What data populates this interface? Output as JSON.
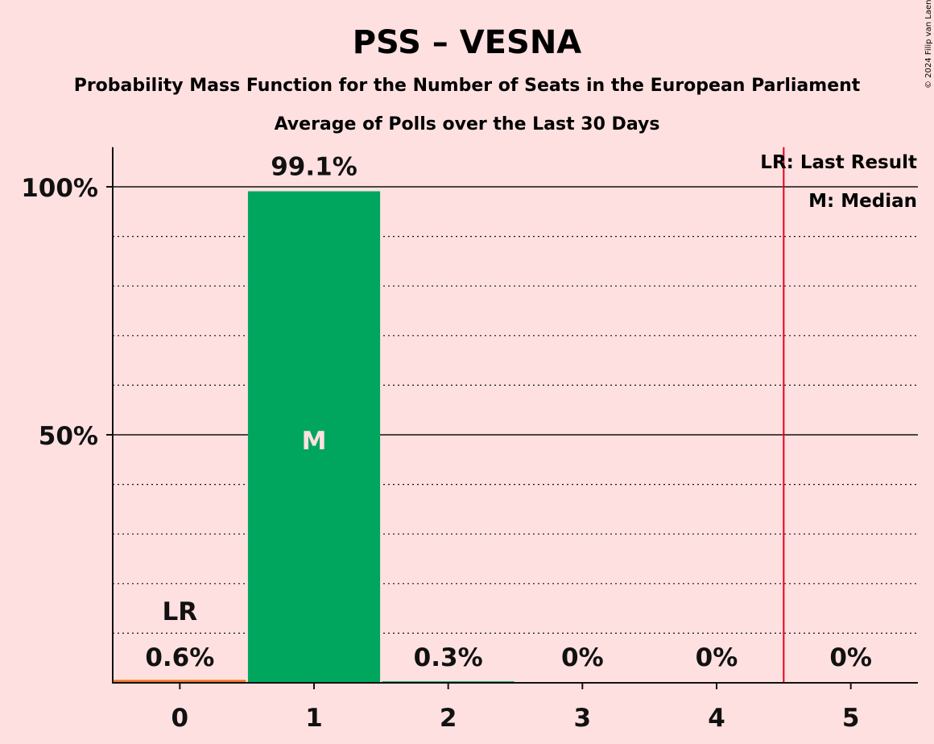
{
  "colors": {
    "background": "#ffe0e0",
    "bar": "#00a65e",
    "last_result_bar": "#f07a2a",
    "last_result_line": "#e8001c",
    "median_text": "#ffe0e0",
    "text": "#111111"
  },
  "copyright": "© 2024 Filip van Laenen",
  "chart_data": {
    "type": "bar",
    "title": "PSS – VESNA",
    "subtitle": "Probability Mass Function for the Number of Seats in the European Parliament",
    "subtitle2": "Average of Polls over the Last 30 Days",
    "categories": [
      "0",
      "1",
      "2",
      "3",
      "4",
      "5"
    ],
    "values": [
      0.6,
      99.1,
      0.3,
      0,
      0,
      0
    ],
    "data_labels": [
      "0.6%",
      "99.1%",
      "0.3%",
      "0%",
      "0%",
      "0%"
    ],
    "ylim": [
      0,
      108
    ],
    "y_ticks": [
      {
        "value": 50,
        "label": "50%"
      },
      {
        "value": 100,
        "label": "100%"
      }
    ],
    "minor_grid_step": 10,
    "last_result_category": 0,
    "last_result_marker": "LR",
    "last_result_line_at": 4.5,
    "median_category": 1,
    "median_marker": "M",
    "legend": {
      "last_result": "LR: Last Result",
      "median": "M: Median",
      "position": "top-right"
    }
  }
}
